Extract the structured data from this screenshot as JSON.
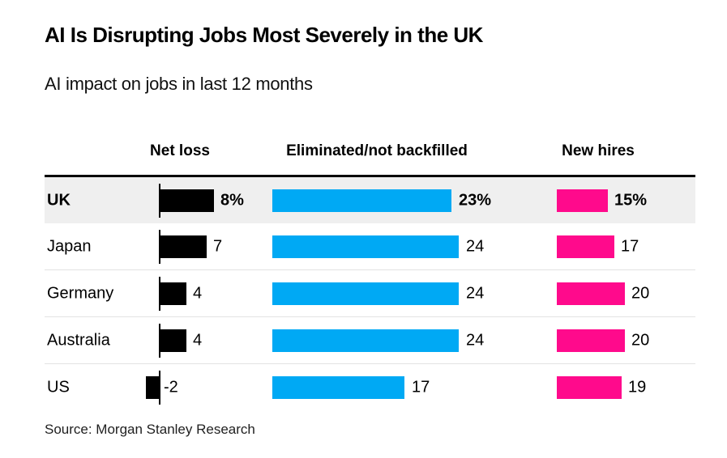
{
  "header": {
    "title": "AI Is Disrupting Jobs Most Severely in the UK",
    "subtitle": "AI impact on jobs in last 12 months"
  },
  "source": "Source: Morgan Stanley Research",
  "chart_data": {
    "type": "bar",
    "orientation": "horizontal",
    "title": "AI Is Disrupting Jobs Most Severely in the UK",
    "subtitle": "AI impact on jobs in last 12 months",
    "unit": "percent",
    "categories": [
      "UK",
      "Japan",
      "Germany",
      "Australia",
      "US"
    ],
    "series": [
      {
        "name": "Net loss",
        "color": "#000000",
        "values": [
          8,
          7,
          4,
          4,
          -2
        ],
        "labels": [
          "8%",
          "7",
          "4",
          "4",
          "-2"
        ]
      },
      {
        "name": "Eliminated/not backfilled",
        "color": "#00a9f4",
        "values": [
          23,
          24,
          24,
          24,
          17
        ],
        "labels": [
          "23%",
          "24",
          "24",
          "24",
          "17"
        ]
      },
      {
        "name": "New hires",
        "color": "#ff0a8c",
        "values": [
          15,
          17,
          20,
          20,
          19
        ],
        "labels": [
          "15%",
          "17",
          "20",
          "20",
          "19"
        ]
      }
    ],
    "highlighted_category": "UK",
    "highlight_bg": "#efefef",
    "grid": false,
    "legend_position": "column-headers"
  }
}
